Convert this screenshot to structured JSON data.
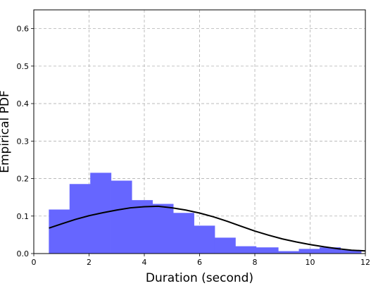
{
  "chart_data": {
    "type": "bar",
    "xlabel": "Duration (second)",
    "ylabel": "Empirical PDF",
    "xlim": [
      0,
      12
    ],
    "ylim": [
      0,
      0.65
    ],
    "grid": true,
    "x_ticks": [
      "0",
      "2",
      "4",
      "6",
      "8",
      "10",
      "12"
    ],
    "y_ticks": [
      "0.0",
      "0.1",
      "0.2",
      "0.3",
      "0.4",
      "0.5",
      "0.6"
    ],
    "x_tick_values": [
      0,
      2,
      4,
      6,
      8,
      10,
      12
    ],
    "y_tick_values": [
      0,
      0.1,
      0.2,
      0.3,
      0.4,
      0.5,
      0.6
    ],
    "histogram": {
      "color": "#6666ff",
      "bins": [
        {
          "x0": 0.55,
          "x1": 1.3,
          "value": 0.117
        },
        {
          "x0": 1.3,
          "x1": 2.05,
          "value": 0.185
        },
        {
          "x0": 2.05,
          "x1": 2.8,
          "value": 0.215
        },
        {
          "x0": 2.8,
          "x1": 3.55,
          "value": 0.194
        },
        {
          "x0": 3.55,
          "x1": 4.3,
          "value": 0.142
        },
        {
          "x0": 4.3,
          "x1": 5.05,
          "value": 0.132
        },
        {
          "x0": 5.05,
          "x1": 5.8,
          "value": 0.108
        },
        {
          "x0": 5.8,
          "x1": 6.55,
          "value": 0.074
        },
        {
          "x0": 6.55,
          "x1": 7.3,
          "value": 0.042
        },
        {
          "x0": 7.3,
          "x1": 8.05,
          "value": 0.019
        },
        {
          "x0": 8.05,
          "x1": 8.85,
          "value": 0.016
        },
        {
          "x0": 8.85,
          "x1": 9.6,
          "value": 0.006
        },
        {
          "x0": 9.6,
          "x1": 10.35,
          "value": 0.012
        },
        {
          "x0": 10.35,
          "x1": 11.1,
          "value": 0.016
        },
        {
          "x0": 11.1,
          "x1": 11.85,
          "value": 0.009
        }
      ]
    },
    "curve": {
      "color": "#000000",
      "points": [
        [
          0.55,
          0.068
        ],
        [
          1.0,
          0.079
        ],
        [
          1.5,
          0.091
        ],
        [
          2.0,
          0.101
        ],
        [
          2.5,
          0.109
        ],
        [
          3.0,
          0.116
        ],
        [
          3.5,
          0.122
        ],
        [
          4.0,
          0.125
        ],
        [
          4.5,
          0.126
        ],
        [
          5.0,
          0.122
        ],
        [
          5.5,
          0.116
        ],
        [
          6.0,
          0.108
        ],
        [
          6.5,
          0.098
        ],
        [
          7.0,
          0.086
        ],
        [
          7.5,
          0.073
        ],
        [
          8.0,
          0.06
        ],
        [
          8.5,
          0.049
        ],
        [
          9.0,
          0.039
        ],
        [
          9.5,
          0.031
        ],
        [
          10.0,
          0.024
        ],
        [
          10.5,
          0.018
        ],
        [
          11.0,
          0.013
        ],
        [
          11.5,
          0.009
        ],
        [
          12.0,
          0.007
        ]
      ]
    }
  }
}
